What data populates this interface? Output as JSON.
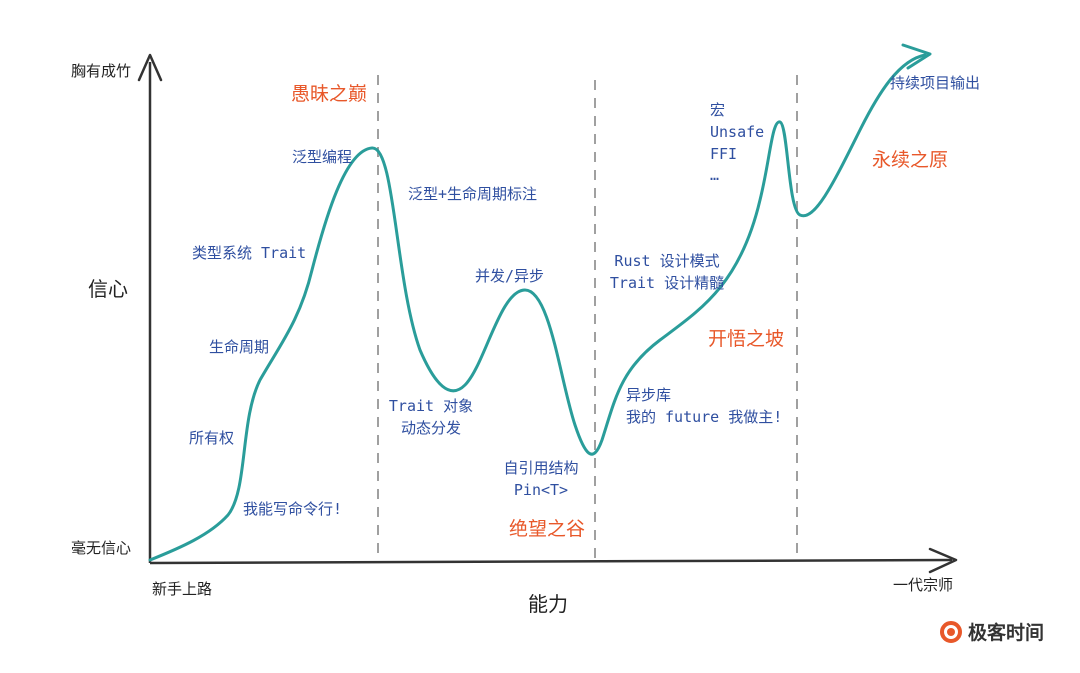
{
  "y_axis": {
    "top_label": "胸有成竹",
    "middle_label": "信心",
    "bottom_label": "毫无信心"
  },
  "x_axis": {
    "left_label": "新手上路",
    "middle_label": "能力",
    "right_label": "一代宗师"
  },
  "stages": [
    "愚昧之巅",
    "绝望之谷",
    "开悟之坡",
    "永续之原"
  ],
  "annotations": {
    "cli": "我能写命令行!",
    "ownership": "所有权",
    "lifetime": "生命周期",
    "type_system": "类型系统 Trait",
    "generics": "泛型编程",
    "generics_lifetime": "泛型+生命周期标注",
    "trait_object": "Trait 对象\n动态分发",
    "concurrency": "并发/异步",
    "self_ref": "自引用结构\nPin<T>",
    "async_lib": "异步库\n我的 future 我做主!",
    "design": "Rust 设计模式\nTrait 设计精髓",
    "advanced": "宏\nUnsafe\nFFI\n…",
    "project": "持续项目输出"
  },
  "brand": {
    "name": "极客时间"
  },
  "colors": {
    "curve": "#2a9d9a",
    "stage": "#e8582a",
    "annotation": "#2f4fa0",
    "axis": "#333333",
    "divider": "#a0a0a0"
  }
}
